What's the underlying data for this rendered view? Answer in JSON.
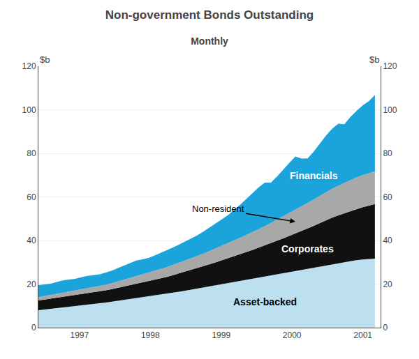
{
  "chart_data": {
    "type": "area",
    "stacked": true,
    "title": "Non-government Bonds Outstanding",
    "subtitle": "Monthly",
    "ylabel": "$b",
    "x": [
      1996.42,
      1996.5064,
      1996.5927,
      1996.6791,
      1996.7655,
      1996.8518,
      1996.9382,
      1997.0245,
      1997.1109,
      1997.1973,
      1997.2836,
      1997.37,
      1997.4564,
      1997.5427,
      1997.6291,
      1997.7155,
      1997.8018,
      1997.8882,
      1997.9745,
      1998.0609,
      1998.1473,
      1998.2336,
      1998.32,
      1998.4064,
      1998.4927,
      1998.5791,
      1998.6655,
      1998.7518,
      1998.8382,
      1998.9245,
      1999.0109,
      1999.0973,
      1999.1836,
      1999.27,
      1999.3564,
      1999.4427,
      1999.5291,
      1999.6155,
      1999.7018,
      1999.7882,
      1999.8745,
      1999.9609,
      2000.0473,
      2000.1336,
      2000.22,
      2000.3064,
      2000.3927,
      2000.4791,
      2000.5655,
      2000.6518,
      2000.7382,
      2000.8245,
      2000.9109,
      2000.9973,
      2001.0836,
      2001.17
    ],
    "xlim": [
      1996.42,
      2001.25
    ],
    "xticks": [
      1997,
      1998,
      1999,
      2000,
      2001
    ],
    "ylim": [
      0,
      120
    ],
    "yticks": [
      0,
      20,
      40,
      60,
      80,
      100,
      120
    ],
    "y2lim": [
      0,
      120
    ],
    "y2ticks": [
      0,
      20,
      40,
      60,
      80,
      100,
      120
    ],
    "grid": true,
    "series": [
      {
        "name": "Asset-backed",
        "color": "#bde0f0",
        "values": [
          8.0,
          8.3,
          8.6,
          9.0,
          9.3,
          9.6,
          9.9,
          10.2,
          10.5,
          10.8,
          11.1,
          11.5,
          11.9,
          12.3,
          12.7,
          13.1,
          13.5,
          13.9,
          14.3,
          14.7,
          15.1,
          15.5,
          16.0,
          16.5,
          17.0,
          17.5,
          18.0,
          18.5,
          19.0,
          19.5,
          20.0,
          20.5,
          21.0,
          21.5,
          22.0,
          22.5,
          23.0,
          23.5,
          24.0,
          24.5,
          25.0,
          25.5,
          26.0,
          26.5,
          27.0,
          27.5,
          28.0,
          28.5,
          29.0,
          29.5,
          30.0,
          30.5,
          31.0,
          31.3,
          31.5,
          31.7
        ]
      },
      {
        "name": "Corporates",
        "color": "#111111",
        "values": [
          4.5,
          4.6,
          4.7,
          4.8,
          4.9,
          5.0,
          5.1,
          5.2,
          5.3,
          5.4,
          5.5,
          5.6,
          5.8,
          6.0,
          6.2,
          6.4,
          6.6,
          6.8,
          7.0,
          7.2,
          7.5,
          7.8,
          8.1,
          8.4,
          8.7,
          9.0,
          9.3,
          9.7,
          10.1,
          10.5,
          10.9,
          11.3,
          11.7,
          12.2,
          12.7,
          13.2,
          13.7,
          14.2,
          14.8,
          15.4,
          16.0,
          16.6,
          17.2,
          17.8,
          18.5,
          19.2,
          20.0,
          20.8,
          21.5,
          22.0,
          22.5,
          23.0,
          23.5,
          24.0,
          24.5,
          25.0
        ]
      },
      {
        "name": "Non-resident",
        "color": "#a8a8a8",
        "values": [
          1.5,
          1.6,
          1.7,
          1.8,
          1.9,
          2.0,
          2.1,
          2.2,
          2.3,
          2.4,
          2.5,
          2.6,
          2.7,
          2.9,
          3.1,
          3.3,
          3.5,
          3.7,
          3.9,
          4.1,
          4.3,
          4.5,
          4.7,
          4.9,
          5.1,
          5.3,
          5.5,
          5.8,
          6.1,
          6.4,
          6.7,
          7.0,
          7.3,
          7.6,
          7.9,
          8.2,
          8.5,
          8.9,
          9.3,
          9.7,
          10.1,
          10.5,
          10.9,
          11.3,
          11.7,
          12.1,
          12.5,
          12.9,
          13.3,
          13.6,
          13.9,
          14.2,
          14.5,
          14.7,
          14.9,
          15.1
        ]
      },
      {
        "name": "Financials",
        "color": "#1ba3dc",
        "values": [
          5.5,
          5.3,
          5.2,
          5.4,
          5.6,
          5.5,
          5.3,
          5.5,
          5.7,
          5.5,
          5.4,
          5.6,
          5.8,
          6.2,
          6.5,
          6.8,
          7.2,
          7.0,
          6.8,
          7.1,
          7.4,
          7.8,
          8.0,
          8.4,
          8.8,
          9.2,
          9.6,
          10.2,
          10.8,
          11.5,
          12.2,
          12.9,
          14.0,
          15.2,
          16.5,
          17.8,
          19.2,
          20.0,
          18.5,
          19.8,
          21.5,
          23.0,
          24.5,
          22.0,
          20.5,
          22.0,
          24.0,
          26.0,
          27.5,
          28.5,
          27.0,
          29.0,
          30.5,
          32.0,
          33.0,
          35.0
        ]
      }
    ]
  }
}
